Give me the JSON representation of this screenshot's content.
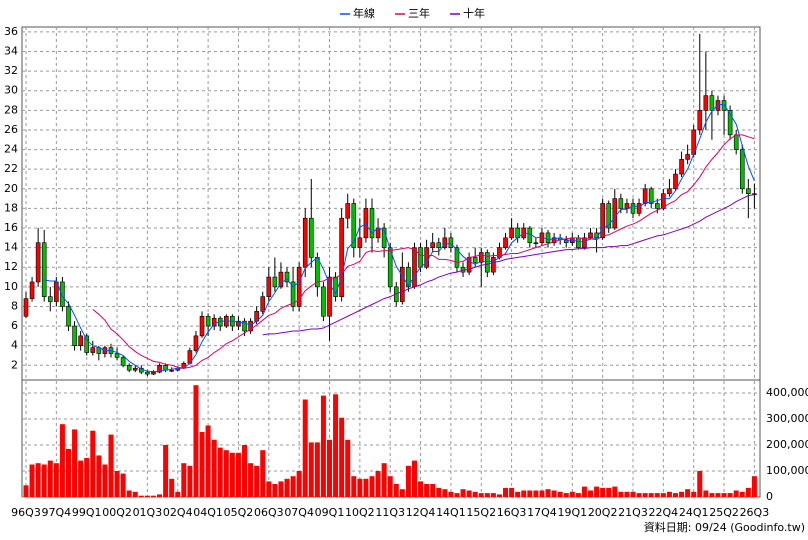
{
  "chart_data": [
    {
      "type": "candlestick",
      "categories": [
        "96Q3",
        null,
        null,
        null,
        null,
        "97Q4",
        null,
        null,
        null,
        null,
        "99Q1",
        null,
        null,
        null,
        null,
        "00Q2",
        null,
        null,
        null,
        null,
        "01Q3",
        null,
        null,
        null,
        null,
        "02Q4",
        null,
        null,
        null,
        null,
        "04Q1",
        null,
        null,
        null,
        null,
        "05Q2",
        null,
        null,
        null,
        null,
        "06Q3",
        null,
        null,
        null,
        null,
        "07Q4",
        null,
        null,
        null,
        null,
        "09Q1",
        null,
        null,
        null,
        null,
        "10Q2",
        null,
        null,
        null,
        null,
        "11Q3",
        null,
        null,
        null,
        null,
        "12Q4",
        null,
        null,
        null,
        null,
        "14Q1",
        null,
        null,
        null,
        null,
        "15Q2",
        null,
        null,
        null,
        null,
        "16Q3",
        null,
        null,
        null,
        null,
        "17Q4",
        null,
        null,
        null,
        null,
        "19Q1",
        null,
        null,
        null,
        null,
        "20Q2",
        null,
        null,
        null,
        null,
        "21Q3",
        null,
        null,
        null,
        null,
        "22Q4",
        null,
        null,
        null,
        null,
        "24Q1",
        null,
        null,
        null,
        null,
        "25Q2",
        null,
        null,
        null,
        null,
        "26Q3"
      ],
      "open": [
        7,
        8.8,
        10.5,
        14.5,
        9,
        8.5,
        10.5,
        8,
        6,
        4,
        5,
        3.3,
        3.8,
        3.2,
        3.8,
        3.2,
        2.8,
        2,
        1.5,
        1.7,
        1.3,
        1.1,
        1.3,
        2,
        1.5,
        1.5,
        1.7,
        2.2,
        3.5,
        5,
        7,
        6,
        6.8,
        6,
        7,
        6,
        6.5,
        5.5,
        6.5,
        7.5,
        9,
        11,
        10,
        11.5,
        10.5,
        8,
        12,
        17,
        13,
        10,
        7,
        11,
        9,
        17,
        18.5,
        14,
        15,
        18,
        15,
        16,
        14,
        10,
        8.5,
        12,
        10,
        14,
        12,
        14,
        14.5,
        14,
        15,
        14,
        12,
        11.5,
        13,
        12.5,
        13.5,
        11.5,
        13,
        14,
        15,
        16,
        15,
        16,
        14.5,
        14.5,
        15.5,
        14.5,
        15,
        14.8,
        14.5,
        15,
        14,
        15,
        15.5,
        15,
        18.5,
        16,
        19,
        18,
        18.5,
        17.5,
        18.5,
        20,
        18.5,
        18,
        19.5,
        20,
        21.5,
        23,
        23.5,
        26,
        28,
        29.5,
        28,
        29,
        28,
        25.5,
        24,
        20,
        19.5
      ],
      "high": [
        9.5,
        11,
        16,
        15.8,
        10,
        11,
        11,
        8.5,
        6.5,
        5.5,
        5.2,
        4.5,
        4,
        4,
        4.2,
        3.8,
        3,
        2.2,
        2,
        2,
        1.5,
        1.5,
        2.2,
        2.2,
        1.8,
        1.9,
        2.4,
        3.8,
        5.5,
        7.5,
        7.3,
        7.2,
        7,
        7.2,
        7.2,
        7,
        6.8,
        6.8,
        8,
        9.5,
        12,
        13,
        12.5,
        12,
        12,
        12.5,
        18,
        21,
        13.5,
        10.5,
        12,
        11.5,
        18,
        19.5,
        19,
        17,
        19,
        19,
        17,
        16.5,
        14.5,
        10.5,
        13.5,
        12.5,
        14.5,
        14.5,
        14.8,
        15.5,
        15,
        16,
        15.5,
        14.3,
        12.5,
        13.5,
        14,
        14,
        13.8,
        13.5,
        14.5,
        15.5,
        17,
        16.5,
        16.5,
        16.2,
        15,
        16,
        15.8,
        15.5,
        15.4,
        15.2,
        15.5,
        15.3,
        15.5,
        16,
        16,
        19,
        18.8,
        20,
        19.5,
        19,
        19,
        19,
        20.5,
        20.2,
        19,
        20,
        21,
        22,
        23.8,
        24.5,
        26.5,
        35.8,
        34,
        30,
        29.5,
        29.5,
        28.5,
        26,
        24.5,
        21,
        20.5
      ],
      "low": [
        6.8,
        8.5,
        10,
        8.5,
        7.5,
        8,
        7.5,
        5.5,
        3.5,
        3.5,
        3,
        3,
        2.5,
        2.8,
        2.8,
        2.5,
        1.8,
        1.3,
        1.3,
        1.1,
        0.9,
        1,
        1.2,
        1.3,
        1.3,
        1.4,
        1.6,
        2.1,
        3.3,
        4.8,
        5,
        5.6,
        5.5,
        5.8,
        5.5,
        5.6,
        5,
        5.2,
        6.2,
        7.2,
        8.5,
        9.5,
        9.8,
        10,
        7.5,
        7.5,
        11,
        12,
        9,
        6.5,
        4.5,
        8.5,
        8.5,
        16,
        13,
        13,
        14.5,
        13.5,
        14.5,
        13,
        9.5,
        8,
        8.2,
        9.5,
        9.8,
        11.5,
        11.8,
        13.5,
        13.2,
        13.8,
        13.5,
        11.5,
        11,
        11.2,
        12,
        10,
        11,
        11.2,
        12.8,
        13.8,
        14.8,
        14.5,
        14.8,
        14,
        14,
        14.2,
        14,
        14.2,
        14.3,
        14,
        14.2,
        13.8,
        13.8,
        14.8,
        13.5,
        14.8,
        15.5,
        15.8,
        17.5,
        17.5,
        17,
        17.2,
        18.2,
        18,
        17.5,
        17.8,
        19.2,
        19.8,
        21.2,
        22.5,
        23.2,
        25.5,
        26,
        25,
        27.5,
        25.5,
        25,
        23.5,
        19.5,
        17,
        18
      ],
      "close": [
        8.8,
        10.5,
        14.5,
        9,
        8.5,
        10.5,
        8,
        6,
        4,
        5,
        3.3,
        3.8,
        3.2,
        3.8,
        3.2,
        2.8,
        2,
        1.5,
        1.7,
        1.3,
        1.1,
        1.3,
        2,
        1.5,
        1.5,
        1.7,
        2.2,
        3.5,
        5,
        7,
        6,
        6.8,
        6,
        7,
        6,
        6.5,
        5.5,
        6.5,
        7.5,
        9,
        11,
        10,
        11.5,
        10.5,
        8,
        12,
        17,
        13,
        10,
        7,
        11,
        9,
        17,
        18.5,
        14,
        15,
        18,
        15,
        16,
        14,
        10,
        8.5,
        12,
        10,
        14,
        12,
        14,
        14.5,
        14,
        15,
        14,
        12,
        11.5,
        13,
        12.5,
        13.5,
        11.5,
        13,
        14,
        15,
        16,
        15,
        16,
        14.5,
        14.5,
        15.5,
        14.5,
        15,
        14.8,
        14.5,
        15,
        14,
        15,
        15.5,
        15,
        18.5,
        16,
        19,
        18,
        18.5,
        17.5,
        18.5,
        20,
        18.5,
        18,
        19.5,
        20,
        21.5,
        23,
        23.5,
        26,
        28,
        29.5,
        28,
        29,
        28,
        25.5,
        24,
        20,
        19.5,
        19.5
      ],
      "up_color": "#ff0000",
      "down_color": "#00c000",
      "series": [
        {
          "name": "年線",
          "color": "#0050ff",
          "values": [
            null,
            null,
            null,
            10.7,
            10.6,
            10.6,
            9,
            8.3,
            7.1,
            5.8,
            4.6,
            4.0,
            3.8,
            3.5,
            3.5,
            3.3,
            3.0,
            2.4,
            2.0,
            1.6,
            1.4,
            1.35,
            1.4,
            1.5,
            1.6,
            1.7,
            1.7,
            2.2,
            3.1,
            4.4,
            5.4,
            6.2,
            6.5,
            6.5,
            6.5,
            6.4,
            6.3,
            6.1,
            6.5,
            7.1,
            8.5,
            9.4,
            10.4,
            10.8,
            10,
            10.5,
            11.9,
            12.5,
            13,
            11.8,
            10.3,
            9.3,
            11,
            13.9,
            14.6,
            16.1,
            16.4,
            15.5,
            16,
            15.8,
            13.8,
            12.1,
            11.1,
            10.1,
            11.1,
            12,
            12.5,
            13.6,
            13.6,
            14.4,
            14.4,
            13.8,
            13.1,
            12.6,
            12.3,
            12.6,
            12.6,
            12.6,
            13,
            13.4,
            14.5,
            15,
            15.5,
            15.4,
            15,
            15.1,
            14.8,
            14.9,
            15,
            14.7,
            14.8,
            14.6,
            14.6,
            14.9,
            14.9,
            16,
            16.3,
            17.1,
            17.9,
            17.9,
            18.3,
            18.1,
            18.6,
            18.6,
            18.8,
            19,
            19,
            19.8,
            21,
            22,
            23.5,
            25.1,
            26.8,
            27.9,
            28.6,
            28.6,
            27.6,
            26.6,
            24.4,
            22.3,
            20.8
          ]
        },
        {
          "name": "三年",
          "color": "#e0006a",
          "values": [
            null,
            null,
            null,
            null,
            null,
            null,
            null,
            null,
            null,
            null,
            null,
            7.7,
            7.2,
            6.6,
            5.7,
            5.2,
            4.6,
            3.9,
            3.4,
            3.0,
            2.7,
            2.4,
            2.3,
            2.1,
            2.0,
            1.8,
            1.7,
            1.8,
            2.0,
            2.5,
            2.8,
            3.3,
            3.7,
            4.2,
            4.5,
            4.9,
            5.3,
            5.7,
            6.1,
            6.6,
            7.1,
            7.3,
            7.8,
            8.1,
            8.3,
            8.7,
            9.6,
            10.1,
            10.5,
            10.6,
            10.9,
            10.9,
            11.3,
            12.1,
            12.3,
            12.6,
            13.5,
            13.7,
            13.6,
            13.7,
            13.7,
            13.8,
            13.9,
            14,
            13.8,
            13.2,
            13.2,
            13.2,
            12.8,
            12.8,
            12.7,
            12.5,
            12.6,
            13,
            13.1,
            13.3,
            13.1,
            13.2,
            13.2,
            13.3,
            13.4,
            13.4,
            13.6,
            13.8,
            14,
            14.2,
            14.4,
            14.6,
            14.8,
            14.9,
            15,
            15,
            14.9,
            14.9,
            14.8,
            15.2,
            15.3,
            15.6,
            15.9,
            16.2,
            16.4,
            16.7,
            17.1,
            17.5,
            17.8,
            18.1,
            18.5,
            18.8,
            19.4,
            19.7,
            20.4,
            21.2,
            22.2,
            23,
            23.7,
            24.5,
            25.1,
            25.5,
            25.5,
            25.3,
            25.1
          ]
        },
        {
          "name": "十年",
          "color": "#8000c0",
          "values": [
            null,
            null,
            null,
            null,
            null,
            null,
            null,
            null,
            null,
            null,
            null,
            null,
            null,
            null,
            null,
            null,
            null,
            null,
            null,
            null,
            null,
            null,
            null,
            null,
            null,
            null,
            null,
            null,
            null,
            null,
            null,
            null,
            null,
            null,
            null,
            null,
            null,
            null,
            null,
            5.1,
            5.2,
            5.2,
            5.3,
            5.4,
            5.5,
            5.5,
            5.6,
            5.7,
            5.7,
            5.8,
            6.1,
            6.4,
            6.7,
            7.0,
            7.3,
            7.6,
            7.9,
            8.2,
            8.5,
            8.8,
            9.0,
            9.3,
            9.5,
            9.8,
            10.0,
            10.2,
            10.5,
            10.7,
            11.0,
            11.2,
            11.4,
            11.5,
            11.7,
            11.8,
            12.0,
            12.2,
            12.3,
            12.5,
            12.6,
            12.8,
            12.9,
            13.0,
            13.1,
            13.2,
            13.3,
            13.4,
            13.5,
            13.6,
            13.7,
            13.8,
            13.8,
            13.9,
            13.9,
            14.0,
            14.0,
            14.0,
            14.1,
            14.1,
            14.2,
            14.2,
            14.4,
            14.6,
            14.8,
            15.0,
            15.2,
            15.3,
            15.5,
            15.7,
            15.9,
            16.1,
            16.4,
            16.7,
            17.1,
            17.4,
            17.7,
            18.0,
            18.3,
            18.7,
            19.0,
            19.3,
            19.4
          ]
        }
      ],
      "ylim": [
        0.5,
        36.5
      ],
      "yticks": [
        2,
        4,
        6,
        8,
        10,
        12,
        14,
        16,
        18,
        20,
        22,
        24,
        26,
        28,
        30,
        32,
        34,
        36
      ],
      "grid": true,
      "legend": "top"
    },
    {
      "type": "bar",
      "color": "#ff0000",
      "values": [
        45000,
        125000,
        130000,
        125000,
        140000,
        130000,
        280000,
        185000,
        260000,
        140000,
        150000,
        255000,
        160000,
        125000,
        240000,
        100000,
        90000,
        25000,
        20000,
        5000,
        5000,
        5000,
        10000,
        200000,
        70000,
        20000,
        130000,
        120000,
        430000,
        250000,
        275000,
        220000,
        190000,
        180000,
        170000,
        170000,
        200000,
        130000,
        120000,
        180000,
        60000,
        50000,
        60000,
        70000,
        80000,
        100000,
        375000,
        210000,
        210000,
        390000,
        220000,
        395000,
        305000,
        220000,
        80000,
        70000,
        70000,
        80000,
        100000,
        130000,
        80000,
        50000,
        30000,
        120000,
        140000,
        60000,
        50000,
        50000,
        35000,
        30000,
        20000,
        15000,
        30000,
        25000,
        20000,
        15000,
        15000,
        15000,
        10000,
        35000,
        35000,
        20000,
        25000,
        25000,
        25000,
        25000,
        30000,
        25000,
        20000,
        15000,
        20000,
        15000,
        40000,
        25000,
        40000,
        35000,
        35000,
        40000,
        20000,
        20000,
        20000,
        15000,
        15000,
        15000,
        15000,
        15000,
        20000,
        15000,
        20000,
        30000,
        20000,
        100000,
        25000,
        15000,
        15000,
        15000,
        15000,
        25000,
        20000,
        35000,
        80000
      ],
      "ylim": [
        0,
        450000
      ],
      "yticks": [
        0,
        {
          "value": 100000,
          "label": "100,000"
        },
        {
          "value": 200000,
          "label": "200,000"
        },
        {
          "value": 300000,
          "label": "300,000"
        },
        {
          "value": 400000,
          "label": "400,000"
        }
      ],
      "grid": true
    }
  ],
  "footer": "資料日期: 09/24 (Goodinfo.tw)"
}
